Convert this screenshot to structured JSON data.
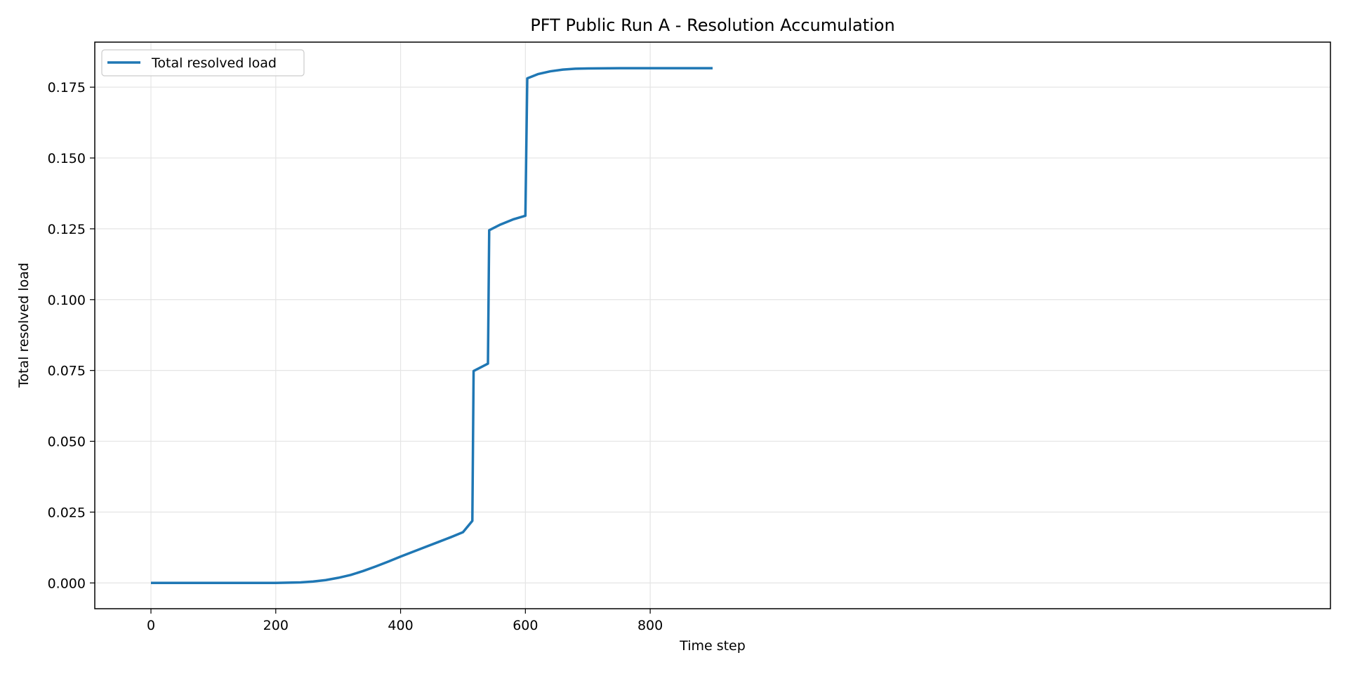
{
  "chart_data": {
    "type": "line",
    "title": "PFT Public Run A - Resolution Accumulation",
    "xlabel": "Time step",
    "ylabel": "Total resolved load",
    "xlim": [
      -90,
      1890
    ],
    "ylim": [
      -0.0091,
      0.1909
    ],
    "xticks": [
      0,
      200,
      400,
      600,
      800
    ],
    "xtick_labels": [
      "0",
      "200",
      "400",
      "600",
      "800"
    ],
    "yticks": [
      0.0,
      0.025,
      0.05,
      0.075,
      0.1,
      0.125,
      0.15,
      0.175
    ],
    "ytick_labels": [
      "0.000",
      "0.025",
      "0.050",
      "0.075",
      "0.100",
      "0.125",
      "0.150",
      "0.175"
    ],
    "grid": true,
    "legend_position": "top-left",
    "series": [
      {
        "name": "Total resolved load",
        "color": "#1f77b4",
        "x": [
          0,
          100,
          200,
          240,
          260,
          280,
          300,
          320,
          340,
          360,
          380,
          400,
          420,
          440,
          460,
          480,
          500,
          515,
          517,
          540,
          542,
          560,
          580,
          600,
          603,
          620,
          640,
          660,
          680,
          700,
          750,
          800,
          850,
          900
        ],
        "y": [
          0.0,
          0.0,
          0.0,
          0.0002,
          0.0005,
          0.001,
          0.0018,
          0.0028,
          0.0042,
          0.0058,
          0.0075,
          0.0093,
          0.011,
          0.0127,
          0.0144,
          0.0161,
          0.0179,
          0.0219,
          0.0748,
          0.0774,
          0.1245,
          0.1265,
          0.1283,
          0.1296,
          0.1781,
          0.1796,
          0.1806,
          0.1812,
          0.1815,
          0.1816,
          0.1817,
          0.1817,
          0.1817,
          0.1817
        ]
      }
    ]
  }
}
